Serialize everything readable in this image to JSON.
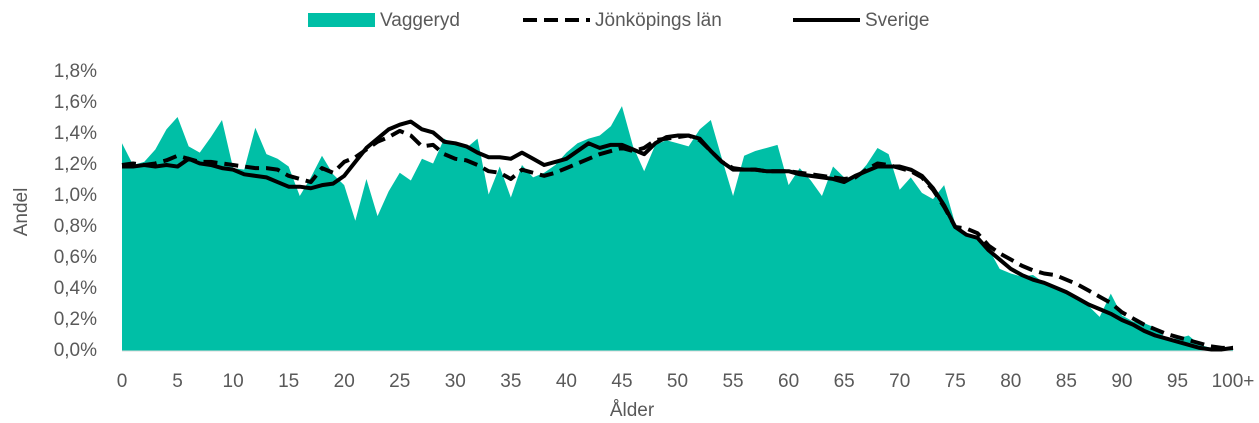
{
  "chart_data": {
    "type": "area_line",
    "y_label": "Andel",
    "x_label": "Ålder",
    "categories": [
      "0",
      null,
      null,
      null,
      null,
      "5",
      null,
      null,
      null,
      null,
      "10",
      null,
      null,
      null,
      null,
      "15",
      null,
      null,
      null,
      null,
      "20",
      null,
      null,
      null,
      null,
      "25",
      null,
      null,
      null,
      null,
      "30",
      null,
      null,
      null,
      null,
      "35",
      null,
      null,
      null,
      null,
      "40",
      null,
      null,
      null,
      null,
      "45",
      null,
      null,
      null,
      null,
      "50",
      null,
      null,
      null,
      null,
      "55",
      null,
      null,
      null,
      null,
      "60",
      null,
      null,
      null,
      null,
      "65",
      null,
      null,
      null,
      null,
      "70",
      null,
      null,
      null,
      null,
      "75",
      null,
      null,
      null,
      null,
      "80",
      null,
      null,
      null,
      null,
      "85",
      null,
      null,
      null,
      null,
      "90",
      null,
      null,
      null,
      null,
      "95",
      null,
      null,
      null,
      null,
      "100+"
    ],
    "ylim": [
      0,
      1.8
    ],
    "yticks": [
      {
        "value": 0,
        "label": "0,0%"
      },
      {
        "value": 0.2,
        "label": "0,2%"
      },
      {
        "value": 0.4,
        "label": "0,4%"
      },
      {
        "value": 0.6,
        "label": "0,6%"
      },
      {
        "value": 0.8,
        "label": "0,8%"
      },
      {
        "value": 1.0,
        "label": "1,0%"
      },
      {
        "value": 1.2,
        "label": "1,2%"
      },
      {
        "value": 1.4,
        "label": "1,4%"
      },
      {
        "value": 1.6,
        "label": "1,6%"
      },
      {
        "value": 1.8,
        "label": "1,8%"
      }
    ],
    "legend": "top",
    "series": [
      {
        "name": "Vaggeryd",
        "color": "#00bfa6",
        "style": "area",
        "values": [
          1.34,
          1.2,
          1.22,
          1.3,
          1.43,
          1.51,
          1.32,
          1.28,
          1.38,
          1.49,
          1.18,
          1.17,
          1.44,
          1.27,
          1.24,
          1.19,
          1.0,
          1.12,
          1.26,
          1.14,
          1.07,
          0.84,
          1.11,
          0.87,
          1.03,
          1.15,
          1.1,
          1.24,
          1.21,
          1.37,
          1.33,
          1.31,
          1.37,
          1.01,
          1.19,
          0.99,
          1.2,
          1.12,
          1.15,
          1.2,
          1.28,
          1.34,
          1.37,
          1.39,
          1.45,
          1.58,
          1.32,
          1.16,
          1.33,
          1.36,
          1.34,
          1.32,
          1.43,
          1.49,
          1.24,
          1.0,
          1.26,
          1.29,
          1.31,
          1.33,
          1.07,
          1.18,
          1.1,
          1.0,
          1.19,
          1.12,
          1.12,
          1.2,
          1.31,
          1.27,
          1.04,
          1.12,
          1.02,
          0.98,
          1.07,
          0.82,
          0.75,
          0.72,
          0.66,
          0.53,
          0.5,
          0.48,
          0.49,
          0.44,
          0.42,
          0.38,
          0.33,
          0.29,
          0.22,
          0.37,
          0.23,
          0.19,
          0.18,
          0.15,
          0.08,
          0.08,
          0.1,
          0.04,
          0.02,
          0.02,
          0.02
        ]
      },
      {
        "name": "Jönköpings län",
        "color": "#000000",
        "style": "dashed",
        "values": [
          1.2,
          1.21,
          1.2,
          1.21,
          1.23,
          1.26,
          1.24,
          1.22,
          1.22,
          1.21,
          1.2,
          1.19,
          1.18,
          1.18,
          1.17,
          1.13,
          1.11,
          1.09,
          1.18,
          1.15,
          1.22,
          1.25,
          1.3,
          1.35,
          1.38,
          1.42,
          1.39,
          1.32,
          1.33,
          1.27,
          1.24,
          1.23,
          1.2,
          1.16,
          1.15,
          1.11,
          1.17,
          1.15,
          1.13,
          1.15,
          1.18,
          1.21,
          1.24,
          1.27,
          1.29,
          1.31,
          1.29,
          1.31,
          1.36,
          1.37,
          1.38,
          1.39,
          1.36,
          1.29,
          1.22,
          1.18,
          1.17,
          1.17,
          1.16,
          1.16,
          1.16,
          1.15,
          1.14,
          1.13,
          1.12,
          1.11,
          1.12,
          1.17,
          1.21,
          1.2,
          1.18,
          1.16,
          1.12,
          1.04,
          0.93,
          0.8,
          0.79,
          0.76,
          0.68,
          0.63,
          0.59,
          0.55,
          0.52,
          0.5,
          0.49,
          0.46,
          0.43,
          0.39,
          0.35,
          0.31,
          0.25,
          0.21,
          0.17,
          0.14,
          0.11,
          0.09,
          0.07,
          0.05,
          0.03,
          0.02,
          0.02
        ]
      },
      {
        "name": "Sverige",
        "color": "#000000",
        "style": "solid",
        "values": [
          1.19,
          1.19,
          1.2,
          1.19,
          1.2,
          1.19,
          1.24,
          1.21,
          1.2,
          1.18,
          1.17,
          1.14,
          1.13,
          1.12,
          1.09,
          1.06,
          1.06,
          1.05,
          1.07,
          1.08,
          1.13,
          1.22,
          1.31,
          1.37,
          1.43,
          1.46,
          1.48,
          1.43,
          1.41,
          1.35,
          1.34,
          1.32,
          1.28,
          1.25,
          1.25,
          1.24,
          1.28,
          1.24,
          1.2,
          1.22,
          1.24,
          1.29,
          1.34,
          1.31,
          1.33,
          1.33,
          1.3,
          1.27,
          1.34,
          1.38,
          1.39,
          1.39,
          1.37,
          1.29,
          1.22,
          1.17,
          1.17,
          1.17,
          1.16,
          1.16,
          1.16,
          1.14,
          1.13,
          1.12,
          1.11,
          1.09,
          1.13,
          1.16,
          1.19,
          1.19,
          1.19,
          1.17,
          1.13,
          1.05,
          0.94,
          0.8,
          0.75,
          0.73,
          0.65,
          0.59,
          0.53,
          0.49,
          0.46,
          0.44,
          0.41,
          0.38,
          0.34,
          0.3,
          0.27,
          0.24,
          0.2,
          0.17,
          0.13,
          0.1,
          0.08,
          0.06,
          0.04,
          0.02,
          0.01,
          0.01,
          0.02
        ]
      }
    ]
  }
}
